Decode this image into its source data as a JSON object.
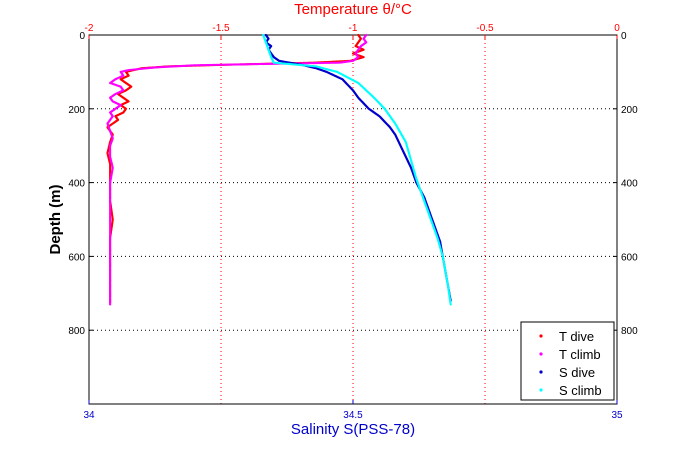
{
  "chart_data": {
    "type": "scatter",
    "top_axis": {
      "label": "Temperature θ/°C",
      "range": [
        -2,
        0
      ],
      "ticks": [
        -2,
        -1.5,
        -1,
        -0.5,
        0
      ],
      "tick_labels": [
        "-2",
        "-1.5",
        "-1",
        "-0.5",
        "0"
      ],
      "color": "#ff0000"
    },
    "bottom_axis": {
      "label": "Salinity S(PSS-78)",
      "range": [
        34,
        35
      ],
      "ticks": [
        34,
        34.5,
        35
      ],
      "tick_labels": [
        "34",
        "34.5",
        "35"
      ],
      "color": "#0000cc"
    },
    "y_axis": {
      "label": "Depth (m)",
      "range": [
        0,
        1000
      ],
      "reversed": true,
      "ticks": [
        0,
        200,
        400,
        600,
        800
      ],
      "tick_labels": [
        "0",
        "200",
        "400",
        "600",
        "800"
      ]
    },
    "grid": true,
    "legend_position": "bottom-right",
    "series": [
      {
        "name": "T dive",
        "color": "#ff0000",
        "axis": "temperature",
        "points": [
          [
            -0.98,
            0
          ],
          [
            -0.97,
            10
          ],
          [
            -0.98,
            20
          ],
          [
            -0.99,
            30
          ],
          [
            -0.96,
            40
          ],
          [
            -1.0,
            50
          ],
          [
            -0.96,
            60
          ],
          [
            -1.01,
            70
          ],
          [
            -1.15,
            75
          ],
          [
            -1.45,
            80
          ],
          [
            -1.7,
            85
          ],
          [
            -1.8,
            90
          ],
          [
            -1.86,
            100
          ],
          [
            -1.85,
            110
          ],
          [
            -1.88,
            120
          ],
          [
            -1.86,
            130
          ],
          [
            -1.84,
            140
          ],
          [
            -1.86,
            150
          ],
          [
            -1.89,
            160
          ],
          [
            -1.87,
            170
          ],
          [
            -1.85,
            180
          ],
          [
            -1.88,
            190
          ],
          [
            -1.86,
            200
          ],
          [
            -1.87,
            210
          ],
          [
            -1.9,
            220
          ],
          [
            -1.89,
            230
          ],
          [
            -1.93,
            250
          ],
          [
            -1.92,
            260
          ],
          [
            -1.91,
            270
          ],
          [
            -1.92,
            290
          ],
          [
            -1.93,
            320
          ],
          [
            -1.92,
            350
          ],
          [
            -1.92,
            400
          ],
          [
            -1.92,
            450
          ],
          [
            -1.91,
            500
          ],
          [
            -1.92,
            550
          ],
          [
            -1.92,
            600
          ],
          [
            -1.92,
            650
          ],
          [
            -1.92,
            700
          ],
          [
            -1.92,
            725
          ]
        ]
      },
      {
        "name": "T climb",
        "color": "#ff00ff",
        "axis": "temperature",
        "points": [
          [
            -0.95,
            0
          ],
          [
            -0.96,
            10
          ],
          [
            -0.95,
            20
          ],
          [
            -0.97,
            30
          ],
          [
            -0.98,
            40
          ],
          [
            -0.99,
            50
          ],
          [
            -0.98,
            60
          ],
          [
            -1.0,
            70
          ],
          [
            -1.05,
            75
          ],
          [
            -1.3,
            78
          ],
          [
            -1.6,
            82
          ],
          [
            -1.75,
            88
          ],
          [
            -1.85,
            95
          ],
          [
            -1.88,
            100
          ],
          [
            -1.87,
            110
          ],
          [
            -1.9,
            120
          ],
          [
            -1.92,
            130
          ],
          [
            -1.88,
            140
          ],
          [
            -1.87,
            150
          ],
          [
            -1.9,
            160
          ],
          [
            -1.92,
            170
          ],
          [
            -1.91,
            180
          ],
          [
            -1.88,
            190
          ],
          [
            -1.9,
            200
          ],
          [
            -1.92,
            210
          ],
          [
            -1.91,
            220
          ],
          [
            -1.93,
            240
          ],
          [
            -1.92,
            260
          ],
          [
            -1.91,
            280
          ],
          [
            -1.92,
            300
          ],
          [
            -1.92,
            330
          ],
          [
            -1.91,
            360
          ],
          [
            -1.92,
            400
          ],
          [
            -1.92,
            450
          ],
          [
            -1.92,
            500
          ],
          [
            -1.92,
            550
          ],
          [
            -1.92,
            600
          ],
          [
            -1.92,
            650
          ],
          [
            -1.92,
            700
          ],
          [
            -1.92,
            730
          ]
        ]
      },
      {
        "name": "S dive",
        "color": "#0000cc",
        "axis": "salinity",
        "points": [
          [
            34.335,
            0
          ],
          [
            34.34,
            10
          ],
          [
            34.335,
            20
          ],
          [
            34.345,
            30
          ],
          [
            34.34,
            40
          ],
          [
            34.345,
            50
          ],
          [
            34.35,
            60
          ],
          [
            34.36,
            70
          ],
          [
            34.4,
            80
          ],
          [
            34.43,
            90
          ],
          [
            34.45,
            100
          ],
          [
            34.48,
            120
          ],
          [
            34.5,
            150
          ],
          [
            34.51,
            170
          ],
          [
            34.53,
            200
          ],
          [
            34.55,
            220
          ],
          [
            34.57,
            250
          ],
          [
            34.58,
            270
          ],
          [
            34.59,
            300
          ],
          [
            34.6,
            330
          ],
          [
            34.61,
            360
          ],
          [
            34.62,
            400
          ],
          [
            34.635,
            440
          ],
          [
            34.645,
            480
          ],
          [
            34.655,
            520
          ],
          [
            34.665,
            560
          ],
          [
            34.67,
            600
          ],
          [
            34.675,
            640
          ],
          [
            34.68,
            680
          ],
          [
            34.685,
            720
          ]
        ]
      },
      {
        "name": "S climb",
        "color": "#00ffff",
        "axis": "salinity",
        "points": [
          [
            34.33,
            0
          ],
          [
            34.335,
            20
          ],
          [
            34.34,
            40
          ],
          [
            34.345,
            60
          ],
          [
            34.35,
            75
          ],
          [
            34.43,
            85
          ],
          [
            34.47,
            100
          ],
          [
            34.51,
            130
          ],
          [
            34.54,
            170
          ],
          [
            34.56,
            200
          ],
          [
            34.58,
            240
          ],
          [
            34.6,
            290
          ],
          [
            34.61,
            340
          ],
          [
            34.62,
            390
          ],
          [
            34.63,
            430
          ],
          [
            34.64,
            470
          ],
          [
            34.65,
            510
          ],
          [
            34.66,
            550
          ],
          [
            34.67,
            600
          ],
          [
            34.675,
            640
          ],
          [
            34.68,
            680
          ],
          [
            34.685,
            730
          ]
        ]
      }
    ]
  }
}
